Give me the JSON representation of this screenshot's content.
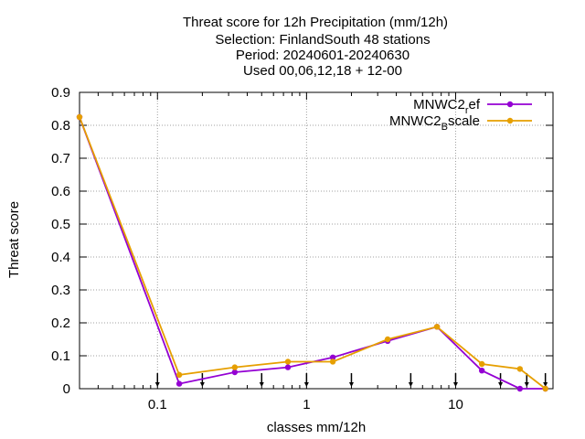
{
  "chart_data": {
    "type": "line",
    "title_lines": [
      "Threat score  for 12h Precipitation (mm/12h)",
      "Selection: FinlandSouth     48 stations",
      "Period: 20240601-20240630",
      "Used 00,06,12,18 + 12-00"
    ],
    "xlabel": "classes mm/12h",
    "ylabel": "Threat score",
    "x_scale": "log",
    "xlim": [
      0.03,
      45
    ],
    "ylim": [
      0,
      0.9
    ],
    "grid": true,
    "legend_position": "top-right",
    "x_ticks": [
      0.1,
      1,
      10
    ],
    "x_tick_labels": [
      "0.1",
      "1",
      "10"
    ],
    "y_ticks": [
      0,
      0.1,
      0.2,
      0.3,
      0.4,
      0.5,
      0.6,
      0.7,
      0.8,
      0.9
    ],
    "y_tick_labels": [
      "0",
      "0.1",
      "0.2",
      "0.3",
      "0.4",
      "0.5",
      "0.6",
      "0.7",
      "0.8",
      "0.9"
    ],
    "threshold_arrows_x": [
      0.1,
      0.2,
      0.5,
      1,
      2,
      5,
      10,
      20,
      30,
      40
    ],
    "series": [
      {
        "name_main": "MNWC2",
        "name_sub": "r",
        "name_rest": "ef",
        "color": "#9400d3",
        "x": [
          0.03,
          0.14,
          0.33,
          0.75,
          1.5,
          3.5,
          7.5,
          15,
          27,
          40
        ],
        "y": [
          0.825,
          0.015,
          0.05,
          0.065,
          0.095,
          0.145,
          0.188,
          0.055,
          0.0,
          0.0
        ]
      },
      {
        "name_main": "MNWC2",
        "name_sub": "B",
        "name_rest": "scale",
        "color": "#e69f00",
        "x": [
          0.03,
          0.14,
          0.33,
          0.75,
          1.5,
          3.5,
          7.5,
          15,
          27,
          40
        ],
        "y": [
          0.825,
          0.042,
          0.065,
          0.082,
          0.082,
          0.15,
          0.188,
          0.075,
          0.06,
          0.0
        ]
      }
    ]
  }
}
